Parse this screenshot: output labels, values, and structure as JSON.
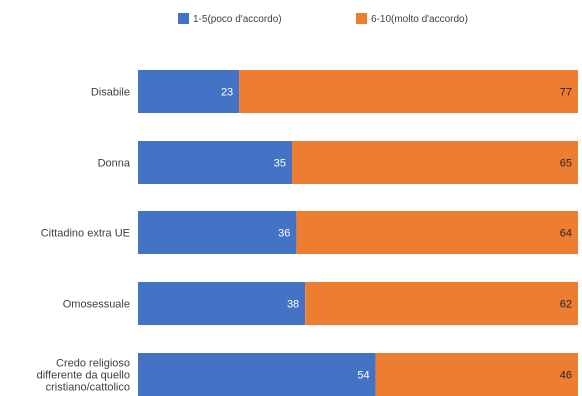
{
  "chart_data": {
    "type": "bar",
    "orientation": "horizontal",
    "stacked": true,
    "normalized": true,
    "categories": [
      [
        "Disabile"
      ],
      [
        "Donna"
      ],
      [
        "Cittadino extra UE"
      ],
      [
        "Omosessuale"
      ],
      [
        "Credo religioso",
        "differente da quello",
        "cristiano/cattolico"
      ]
    ],
    "series": [
      {
        "name": "1-5(poco d'accordo)",
        "color": "#4472c4",
        "values": [
          23,
          35,
          36,
          38,
          54
        ]
      },
      {
        "name": "6-10(molto d'accordo)",
        "color": "#ed7d31",
        "values": [
          77,
          65,
          64,
          62,
          46
        ]
      }
    ],
    "xlim": [
      0,
      100
    ],
    "grid": false,
    "legend_position": "top-center"
  }
}
